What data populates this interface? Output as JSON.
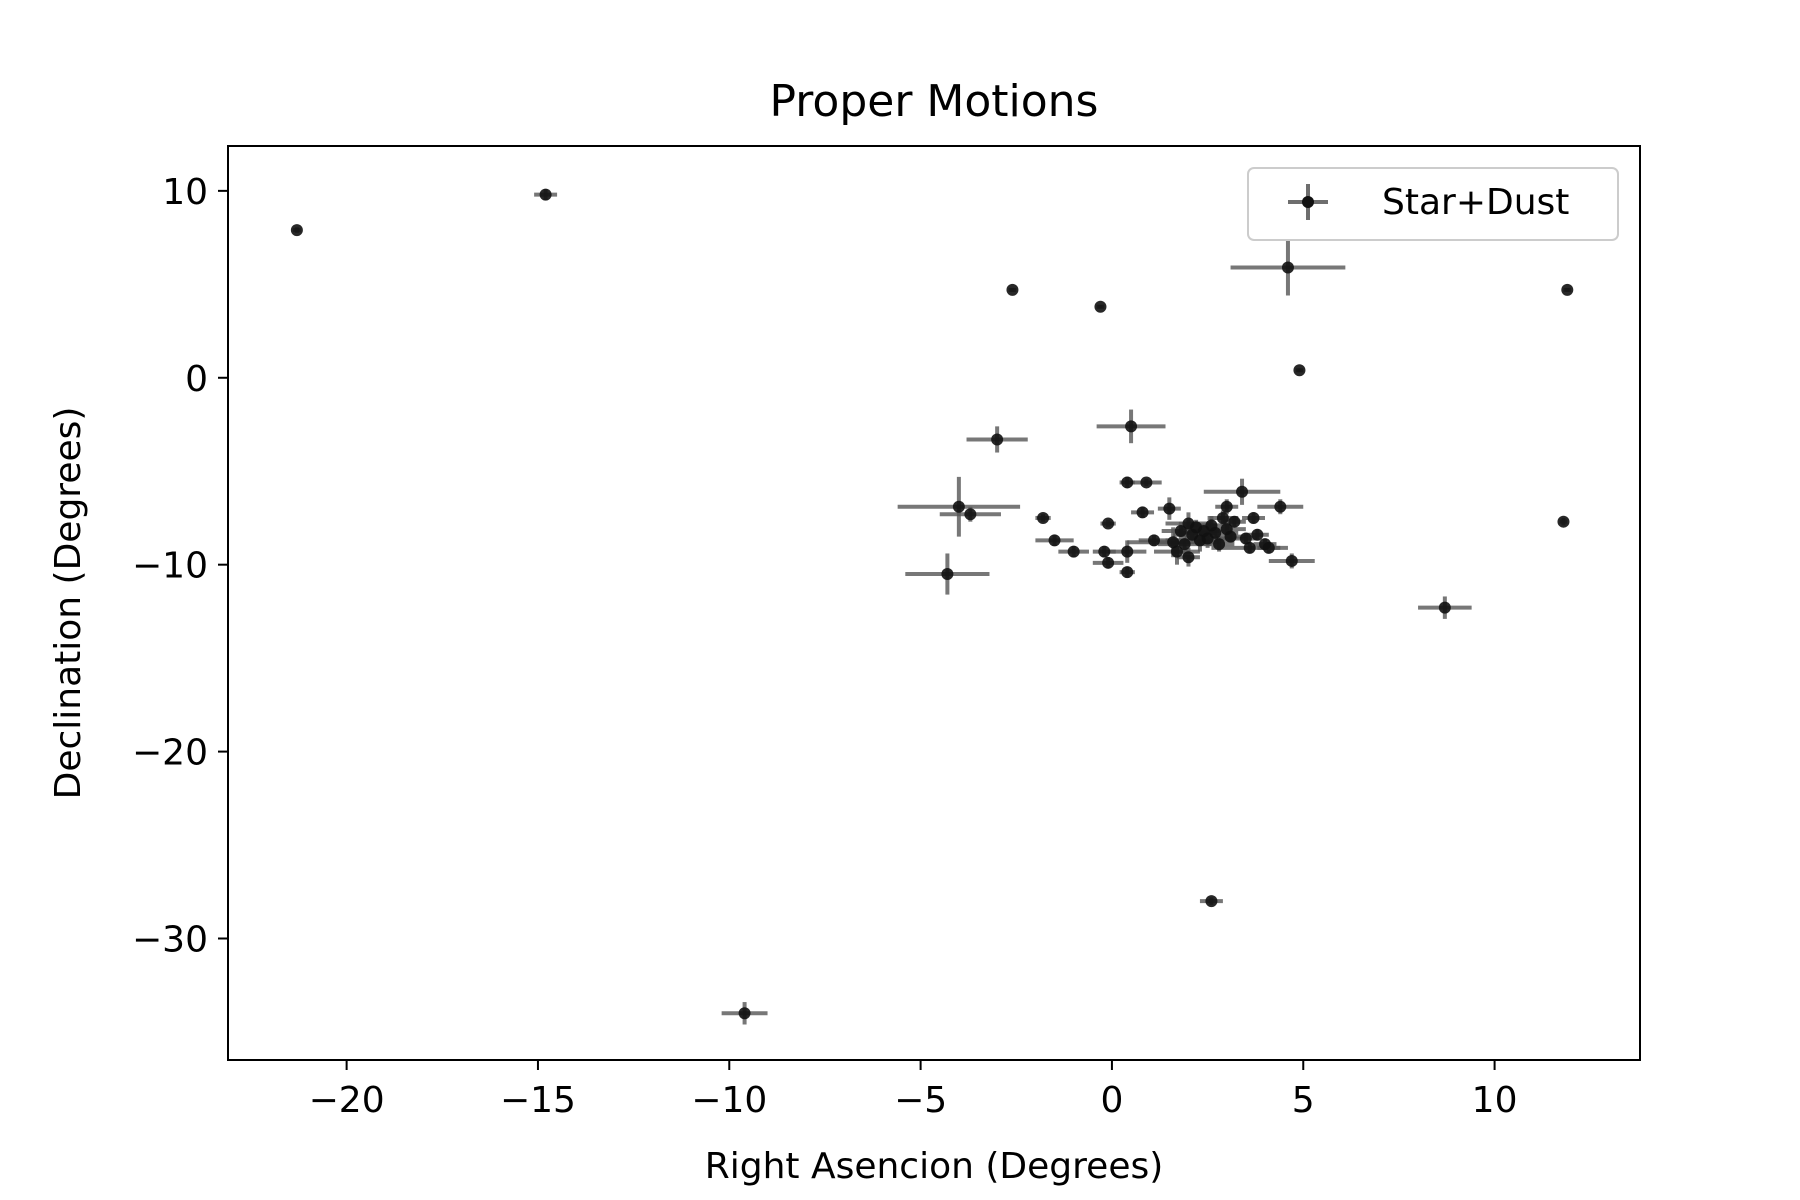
{
  "chart_data": {
    "type": "scatter",
    "title": "Proper Motions",
    "xlabel": "Right Asencion (Degrees)",
    "ylabel": "Declination (Degrees)",
    "xlim": [
      -23.1,
      13.8
    ],
    "ylim": [
      -36.5,
      12.4
    ],
    "xticks": [
      -20,
      -15,
      -10,
      -5,
      0,
      5,
      10
    ],
    "xtick_labels": [
      "−20",
      "−15",
      "−10",
      "−5",
      "0",
      "5",
      "10"
    ],
    "yticks": [
      10,
      0,
      -10,
      -20,
      -30
    ],
    "ytick_labels": [
      "10",
      "0",
      "−10",
      "−20",
      "−30"
    ],
    "grid": false,
    "legend_position": "top-right",
    "colors": {
      "marker": "#000000",
      "errorbar": "#555555",
      "axes": "#000000"
    },
    "series": [
      {
        "name": "Star+Dust",
        "points": [
          {
            "x": -21.3,
            "y": 7.9,
            "xerr": 0.1,
            "yerr": 0.15
          },
          {
            "x": -14.8,
            "y": 9.8,
            "xerr": 0.3,
            "yerr": 0.3
          },
          {
            "x": -9.6,
            "y": -34.0,
            "xerr": 0.6,
            "yerr": 0.6
          },
          {
            "x": -4.3,
            "y": -10.5,
            "xerr": 1.1,
            "yerr": 1.1
          },
          {
            "x": -4.0,
            "y": -6.9,
            "xerr": 1.6,
            "yerr": 1.6
          },
          {
            "x": -3.7,
            "y": -7.3,
            "xerr": 0.8,
            "yerr": 0.4
          },
          {
            "x": -3.0,
            "y": -3.3,
            "xerr": 0.8,
            "yerr": 0.7
          },
          {
            "x": -2.6,
            "y": 4.7,
            "xerr": 0.1,
            "yerr": 0.1
          },
          {
            "x": -1.8,
            "y": -7.5,
            "xerr": 0.2,
            "yerr": 0.2
          },
          {
            "x": -1.5,
            "y": -8.7,
            "xerr": 0.5,
            "yerr": 0.3
          },
          {
            "x": -1.0,
            "y": -9.3,
            "xerr": 0.4,
            "yerr": 0.3
          },
          {
            "x": -0.3,
            "y": 3.8,
            "xerr": 0.1,
            "yerr": 0.1
          },
          {
            "x": -0.2,
            "y": -9.3,
            "xerr": 0.3,
            "yerr": 0.3
          },
          {
            "x": -0.1,
            "y": -9.9,
            "xerr": 0.4,
            "yerr": 0.3
          },
          {
            "x": -0.1,
            "y": -7.8,
            "xerr": 0.2,
            "yerr": 0.2
          },
          {
            "x": 0.4,
            "y": -5.6,
            "xerr": 0.2,
            "yerr": 0.3
          },
          {
            "x": 0.4,
            "y": -10.4,
            "xerr": 0.2,
            "yerr": 0.3
          },
          {
            "x": 0.4,
            "y": -9.3,
            "xerr": 0.5,
            "yerr": 0.6
          },
          {
            "x": 0.5,
            "y": -2.6,
            "xerr": 0.9,
            "yerr": 0.9
          },
          {
            "x": 0.8,
            "y": -7.2,
            "xerr": 0.3,
            "yerr": 0.3
          },
          {
            "x": 0.9,
            "y": -5.6,
            "xerr": 0.4,
            "yerr": 0.2
          },
          {
            "x": 1.1,
            "y": -8.7,
            "xerr": 0.4,
            "yerr": 0.3
          },
          {
            "x": 1.5,
            "y": -7.0,
            "xerr": 0.3,
            "yerr": 0.6
          },
          {
            "x": 1.6,
            "y": -8.8,
            "xerr": 1.2,
            "yerr": 0.8
          },
          {
            "x": 1.7,
            "y": -9.3,
            "xerr": 0.6,
            "yerr": 0.7
          },
          {
            "x": 1.8,
            "y": -8.2,
            "xerr": 0.5,
            "yerr": 0.5
          },
          {
            "x": 1.9,
            "y": -8.9,
            "xerr": 0.7,
            "yerr": 0.7
          },
          {
            "x": 2.0,
            "y": -7.8,
            "xerr": 0.6,
            "yerr": 0.6
          },
          {
            "x": 2.0,
            "y": -9.6,
            "xerr": 0.3,
            "yerr": 0.5
          },
          {
            "x": 2.1,
            "y": -8.4,
            "xerr": 0.5,
            "yerr": 0.5
          },
          {
            "x": 2.2,
            "y": -8.0,
            "xerr": 0.4,
            "yerr": 0.4
          },
          {
            "x": 2.3,
            "y": -8.7,
            "xerr": 0.9,
            "yerr": 0.6
          },
          {
            "x": 2.4,
            "y": -8.2,
            "xerr": 0.4,
            "yerr": 0.4
          },
          {
            "x": 2.5,
            "y": -8.6,
            "xerr": 0.6,
            "yerr": 0.5
          },
          {
            "x": 2.6,
            "y": -7.9,
            "xerr": 0.5,
            "yerr": 0.5
          },
          {
            "x": 2.6,
            "y": -28.0,
            "xerr": 0.3,
            "yerr": 0.2
          },
          {
            "x": 2.7,
            "y": -8.3,
            "xerr": 0.6,
            "yerr": 0.5
          },
          {
            "x": 2.8,
            "y": -8.9,
            "xerr": 0.4,
            "yerr": 0.4
          },
          {
            "x": 2.9,
            "y": -7.5,
            "xerr": 0.4,
            "yerr": 0.4
          },
          {
            "x": 3.0,
            "y": -6.9,
            "xerr": 0.3,
            "yerr": 0.4
          },
          {
            "x": 3.0,
            "y": -8.1,
            "xerr": 0.5,
            "yerr": 0.5
          },
          {
            "x": 3.1,
            "y": -8.5,
            "xerr": 0.4,
            "yerr": 0.3
          },
          {
            "x": 3.2,
            "y": -7.7,
            "xerr": 0.3,
            "yerr": 0.3
          },
          {
            "x": 3.4,
            "y": -6.1,
            "xerr": 1.0,
            "yerr": 0.7
          },
          {
            "x": 3.5,
            "y": -8.6,
            "xerr": 0.3,
            "yerr": 0.3
          },
          {
            "x": 3.6,
            "y": -9.1,
            "xerr": 1.0,
            "yerr": 0.3
          },
          {
            "x": 3.7,
            "y": -7.5,
            "xerr": 0.3,
            "yerr": 0.3
          },
          {
            "x": 3.8,
            "y": -8.4,
            "xerr": 0.3,
            "yerr": 0.3
          },
          {
            "x": 4.0,
            "y": -8.9,
            "xerr": 0.3,
            "yerr": 0.3
          },
          {
            "x": 4.1,
            "y": -9.1,
            "xerr": 0.3,
            "yerr": 0.3
          },
          {
            "x": 4.4,
            "y": -6.9,
            "xerr": 0.6,
            "yerr": 0.4
          },
          {
            "x": 4.6,
            "y": 5.9,
            "xerr": 1.5,
            "yerr": 1.5
          },
          {
            "x": 4.7,
            "y": -9.8,
            "xerr": 0.6,
            "yerr": 0.4
          },
          {
            "x": 4.9,
            "y": 0.4,
            "xerr": 0.1,
            "yerr": 0.1
          },
          {
            "x": 8.7,
            "y": -12.3,
            "xerr": 0.7,
            "yerr": 0.6
          },
          {
            "x": 11.8,
            "y": -7.7,
            "xerr": 0.1,
            "yerr": 0.2
          },
          {
            "x": 11.9,
            "y": 4.7,
            "xerr": 0.1,
            "yerr": 0.1
          }
        ]
      }
    ]
  }
}
